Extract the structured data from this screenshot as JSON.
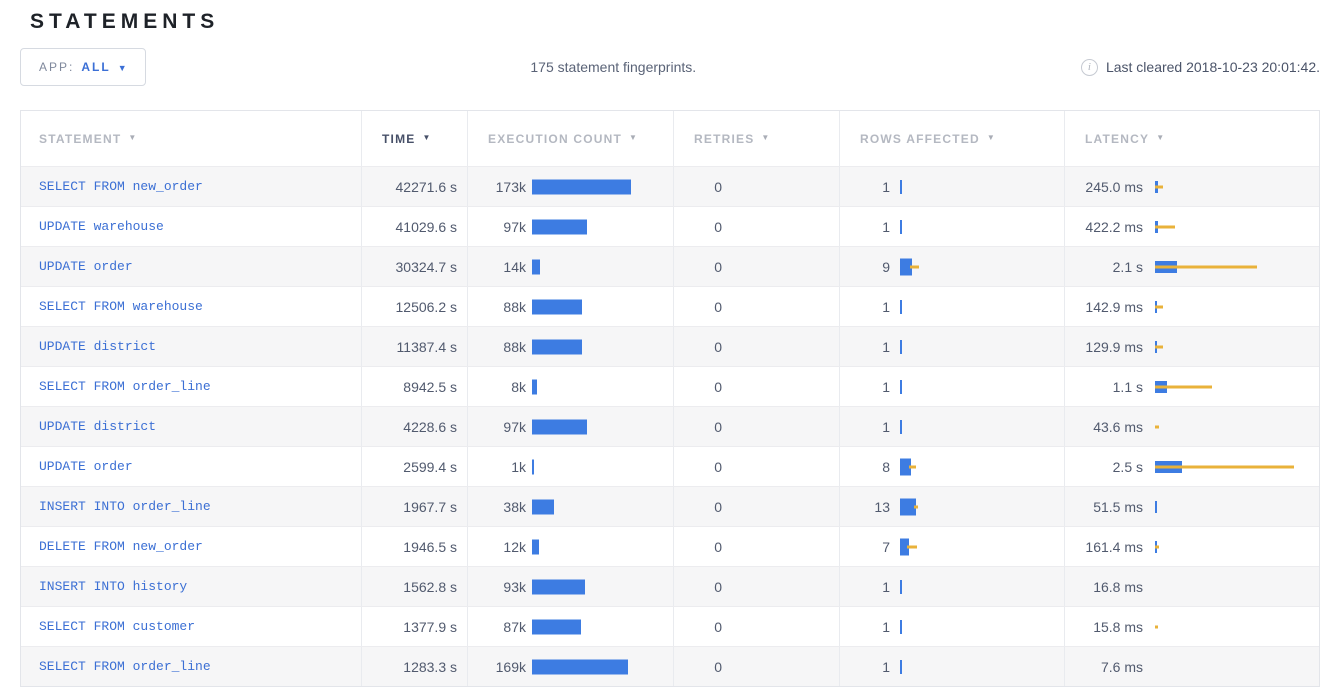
{
  "page": {
    "title": "STATEMENTS"
  },
  "toolbar": {
    "app_filter": {
      "label": "APP:",
      "value": "ALL",
      "caret": "▼"
    },
    "summary": "175 statement fingerprints.",
    "info_icon": "i",
    "last_cleared": "Last cleared 2018-10-23 20:01:42."
  },
  "colors": {
    "bar_blue": "#3d7ce2",
    "bar_yellow": "#e9b23a",
    "link_blue": "#3b6fd4",
    "row_alt_bg": "#f6f6f7"
  },
  "table": {
    "columns": [
      {
        "label": "STATEMENT",
        "caret": "▼",
        "active": false
      },
      {
        "label": "TIME",
        "caret": "▼",
        "active": true
      },
      {
        "label": "EXECUTION COUNT",
        "caret": "▼",
        "active": false
      },
      {
        "label": "RETRIES",
        "caret": "▼",
        "active": false
      },
      {
        "label": "ROWS AFFECTED",
        "caret": "▼",
        "active": false
      },
      {
        "label": "LATENCY",
        "caret": "▼",
        "active": false
      }
    ],
    "rows": [
      {
        "statement": "SELECT FROM new_order",
        "time": "42271.6 s",
        "exec_label": "173k",
        "exec_bar": 99,
        "retries": "0",
        "rows_label": "1",
        "rows_bar": 2,
        "rows_tick": true,
        "rows_std": 0,
        "latency_label": "245.0 ms",
        "lat_bar": 3,
        "lat_line": 8
      },
      {
        "statement": "UPDATE warehouse",
        "time": "41029.6 s",
        "exec_label": "97k",
        "exec_bar": 55,
        "retries": "0",
        "rows_label": "1",
        "rows_bar": 2,
        "rows_tick": true,
        "rows_std": 0,
        "latency_label": "422.2 ms",
        "lat_bar": 3,
        "lat_line": 20
      },
      {
        "statement": "UPDATE order",
        "time": "30324.7 s",
        "exec_label": "14k",
        "exec_bar": 8,
        "retries": "0",
        "rows_label": "9",
        "rows_bar": 12,
        "rows_tick": false,
        "rows_std": 9,
        "latency_label": "2.1 s",
        "lat_bar": 22,
        "lat_line": 102
      },
      {
        "statement": "SELECT FROM warehouse",
        "time": "12506.2 s",
        "exec_label": "88k",
        "exec_bar": 50,
        "retries": "0",
        "rows_label": "1",
        "rows_bar": 2,
        "rows_tick": true,
        "rows_std": 0,
        "latency_label": "142.9 ms",
        "lat_bar": 2,
        "lat_line": 8
      },
      {
        "statement": "UPDATE district",
        "time": "11387.4 s",
        "exec_label": "88k",
        "exec_bar": 50,
        "retries": "0",
        "rows_label": "1",
        "rows_bar": 2,
        "rows_tick": true,
        "rows_std": 0,
        "latency_label": "129.9 ms",
        "lat_bar": 2,
        "lat_line": 8
      },
      {
        "statement": "SELECT FROM order_line",
        "time": "8942.5 s",
        "exec_label": "8k",
        "exec_bar": 5,
        "retries": "0",
        "rows_label": "1",
        "rows_bar": 2,
        "rows_tick": true,
        "rows_std": 0,
        "latency_label": "1.1 s",
        "lat_bar": 12,
        "lat_line": 57
      },
      {
        "statement": "UPDATE district",
        "time": "4228.6 s",
        "exec_label": "97k",
        "exec_bar": 55,
        "retries": "0",
        "rows_label": "1",
        "rows_bar": 2,
        "rows_tick": true,
        "rows_std": 0,
        "latency_label": "43.6 ms",
        "lat_bar": 0,
        "lat_line": 4
      },
      {
        "statement": "UPDATE order",
        "time": "2599.4 s",
        "exec_label": "1k",
        "exec_bar": 1.5,
        "retries": "0",
        "rows_label": "8",
        "rows_bar": 11,
        "rows_tick": false,
        "rows_std": 7,
        "latency_label": "2.5 s",
        "lat_bar": 27,
        "lat_line": 139
      },
      {
        "statement": "INSERT INTO order_line",
        "time": "1967.7 s",
        "exec_label": "38k",
        "exec_bar": 22,
        "retries": "0",
        "rows_label": "13",
        "rows_bar": 16,
        "rows_tick": false,
        "rows_std": 4,
        "latency_label": "51.5 ms",
        "lat_bar": 2,
        "lat_line": 0
      },
      {
        "statement": "DELETE FROM new_order",
        "time": "1946.5 s",
        "exec_label": "12k",
        "exec_bar": 7,
        "retries": "0",
        "rows_label": "7",
        "rows_bar": 9,
        "rows_tick": false,
        "rows_std": 10,
        "latency_label": "161.4 ms",
        "lat_bar": 2,
        "lat_line": 4
      },
      {
        "statement": "INSERT INTO history",
        "time": "1562.8 s",
        "exec_label": "93k",
        "exec_bar": 53,
        "retries": "0",
        "rows_label": "1",
        "rows_bar": 2,
        "rows_tick": true,
        "rows_std": 0,
        "latency_label": "16.8 ms",
        "lat_bar": 0,
        "lat_line": 0
      },
      {
        "statement": "SELECT FROM customer",
        "time": "1377.9 s",
        "exec_label": "87k",
        "exec_bar": 49,
        "retries": "0",
        "rows_label": "1",
        "rows_bar": 2,
        "rows_tick": true,
        "rows_std": 0,
        "latency_label": "15.8 ms",
        "lat_bar": 0,
        "lat_line": 3
      },
      {
        "statement": "SELECT FROM order_line",
        "time": "1283.3 s",
        "exec_label": "169k",
        "exec_bar": 96,
        "retries": "0",
        "rows_label": "1",
        "rows_bar": 2,
        "rows_tick": true,
        "rows_std": 0,
        "latency_label": "7.6 ms",
        "lat_bar": 0,
        "lat_line": 0
      }
    ]
  }
}
